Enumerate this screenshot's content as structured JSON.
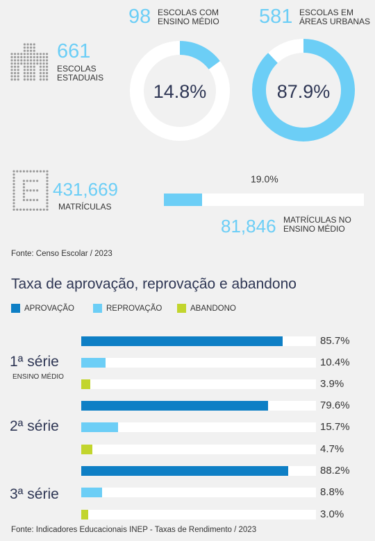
{
  "stats": {
    "escolas_estaduais": {
      "value": "661",
      "label_line1": "ESCOLAS",
      "label_line2": "ESTADUAIS"
    },
    "ensino_medio": {
      "value": "98",
      "label_line1": "ESCOLAS COM",
      "label_line2": "ENSINO MÉDIO",
      "percent_label": "14.8%",
      "fraction": 0.148
    },
    "areas_urbanas": {
      "value": "581",
      "label_line1": "ESCOLAS EM",
      "label_line2": "ÁREAS URBANAS",
      "percent_label": "87.9%",
      "fraction": 0.879
    },
    "matriculas": {
      "value": "431,669",
      "label": "MATRÍCULAS"
    },
    "matriculas_em": {
      "value": "81,846",
      "label_line1": "MATRÍCULAS NO",
      "label_line2": "ENSINO MÉDIO",
      "percent_label": "19.0%",
      "fraction": 0.19
    }
  },
  "source_top": "Fonte: Censo Escolar / 2023",
  "chart_data": {
    "type": "bar",
    "title": "Taxa de aprovação, reprovação e abandono",
    "legend": [
      {
        "name": "APROVAÇÃO",
        "color": "#0e7fc5"
      },
      {
        "name": "REPROVAÇÃO",
        "color": "#6ccef6"
      },
      {
        "name": "ABANDONO",
        "color": "#c2d52d"
      }
    ],
    "categories": [
      "1ª série",
      "2ª série",
      "3ª série"
    ],
    "category_sublabels": [
      "ENSINO MÉDIO",
      "",
      ""
    ],
    "series": [
      {
        "name": "APROVAÇÃO",
        "values": [
          85.7,
          79.6,
          88.2
        ],
        "labels": [
          "85.7%",
          "79.6%",
          "88.2%"
        ]
      },
      {
        "name": "REPROVAÇÃO",
        "values": [
          10.4,
          15.7,
          8.8
        ],
        "labels": [
          "10.4%",
          "15.7%",
          "8.8%"
        ]
      },
      {
        "name": "ABANDONO",
        "values": [
          3.9,
          4.7,
          3.0
        ],
        "labels": [
          "3.9%",
          "4.7%",
          "3.0%"
        ]
      }
    ],
    "xlim": [
      0,
      100
    ],
    "orientation": "horizontal"
  },
  "source_bottom": "Fonte: Indicadores Educacionais INEP - Taxas de Rendimento / 2023",
  "colors": {
    "accent_light": "#6ccef6",
    "accent_dark": "#0e7fc5",
    "accent_green": "#c2d52d",
    "text_dark": "#2e3654"
  },
  "icons": [
    "school-building-icon",
    "enrollment-document-icon"
  ]
}
